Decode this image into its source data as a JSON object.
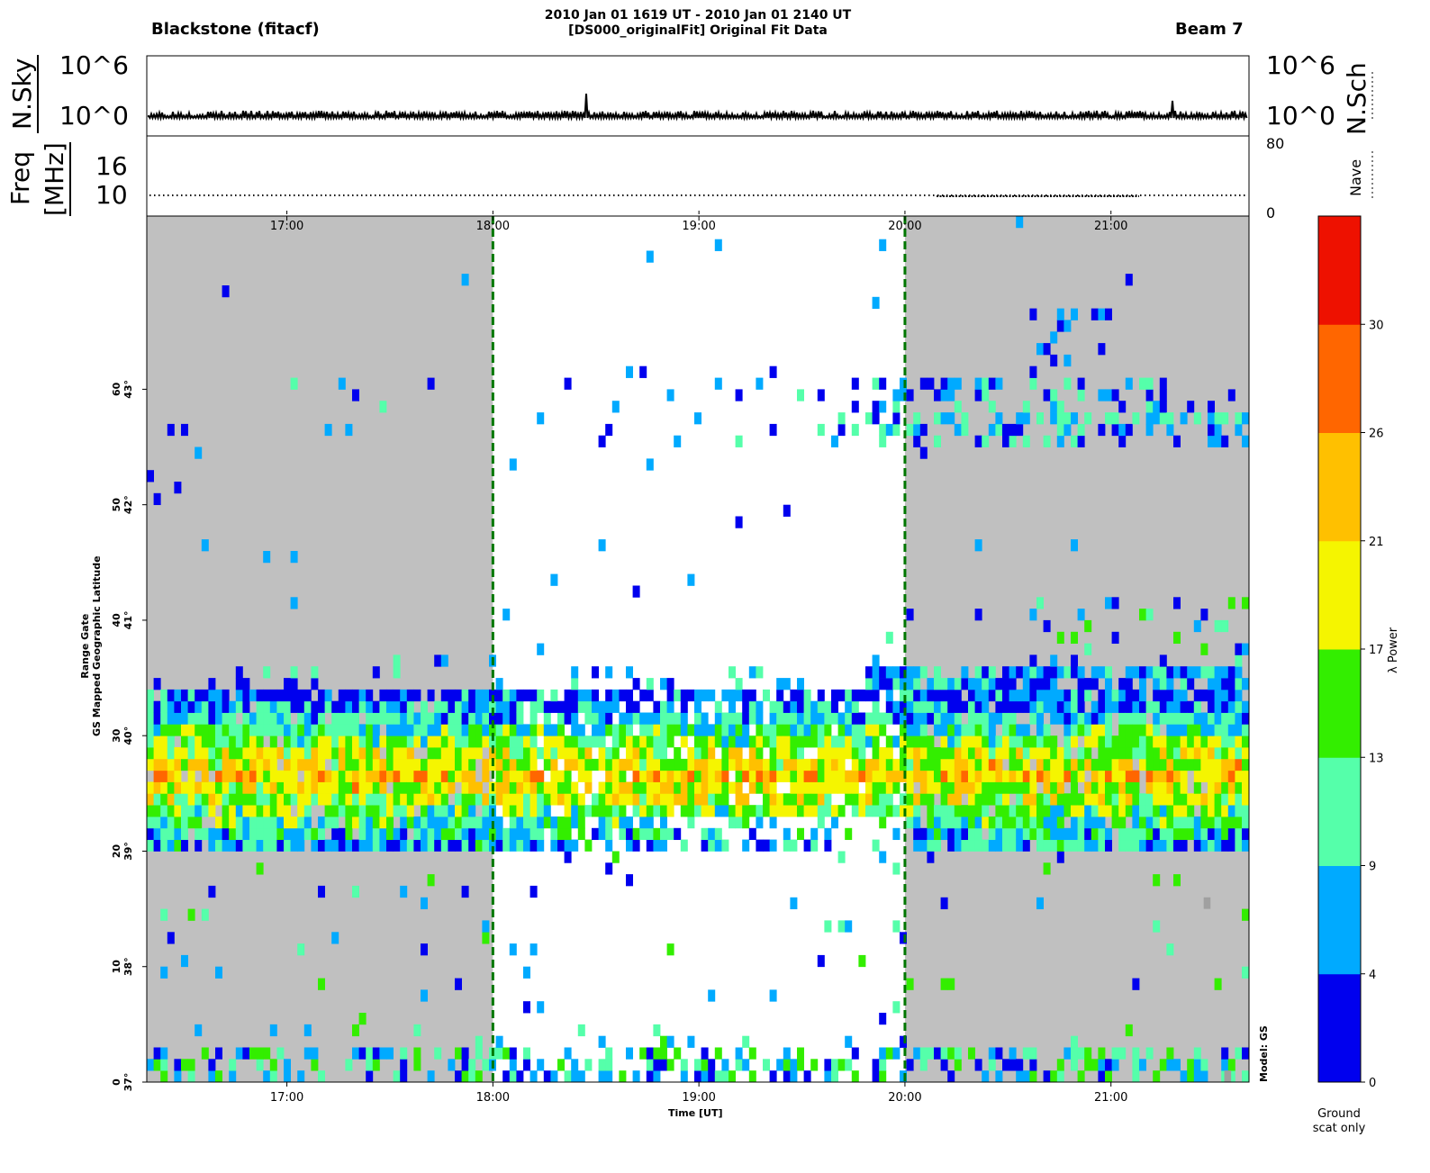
{
  "header": {
    "station": "Blackstone  (fitacf)",
    "title_line1": "2010 Jan 01 1619 UT - 2010 Jan 01 2140 UT",
    "title_line2": "[DS000_originalFit] Original Fit Data",
    "beam": "Beam 7"
  },
  "noise_panel": {
    "left_label": "N.Sky",
    "right_label": "N.Sch",
    "left_ticks": [
      "10^6",
      "10^0"
    ],
    "right_ticks": [
      "10^6",
      "10^0"
    ]
  },
  "freq_panel": {
    "left_label_line1": "Freq",
    "left_label_line2": "[MHz]",
    "left_ticks": [
      "16",
      "10"
    ],
    "right_label": "Nave",
    "right_ticks": [
      "80",
      "0"
    ]
  },
  "chart_data": {
    "type": "heatmap",
    "xlabel": "Time [UT]",
    "ylabel_line1": "Range Gate",
    "ylabel_line2": "GS Mapped Geographic Latitude",
    "x_ticks": [
      "17:00",
      "18:00",
      "19:00",
      "20:00",
      "21:00"
    ],
    "x_range_hours": [
      16.32,
      21.67
    ],
    "y_range_gates": [
      0,
      75
    ],
    "y_ticks": [
      {
        "gate": "0",
        "lat": "37°"
      },
      {
        "gate": "10",
        "lat": "38°"
      },
      {
        "gate": "20",
        "lat": "39°"
      },
      {
        "gate": "30",
        "lat": "40°"
      },
      {
        "gate": "40",
        "lat": "41°"
      },
      {
        "gate": "50",
        "lat": "42°"
      },
      {
        "gate": "60",
        "lat": "43°"
      }
    ],
    "day_window_hours": [
      18.0,
      20.0
    ],
    "model_label": "Model: GS",
    "colorbar": {
      "label": "λ Power",
      "ticks": [
        "0",
        "4",
        "9",
        "13",
        "17",
        "21",
        "26",
        "30"
      ],
      "colors": [
        "#0000ee",
        "#00aaff",
        "#55ffaa",
        "#33ee00",
        "#f5f500",
        "#ffc000",
        "#ff6600",
        "#ee1100"
      ]
    },
    "ground_scatter_label": "Ground scat only",
    "colors": {
      "ground_scatter": "#a0a0a0",
      "night_bg": "#c0c0c0",
      "terminator_line": "#007700"
    }
  }
}
